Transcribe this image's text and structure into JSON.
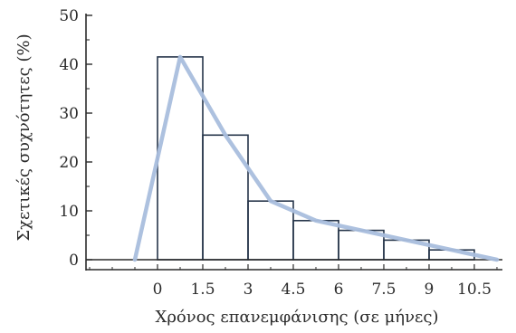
{
  "chart_data": {
    "type": "bar",
    "title": "",
    "xlabel": "Χρόνος επανεμφάνισης (σε μήνες)",
    "ylabel": "Σχετικές συχνότητες (%)",
    "xlim": [
      -1.5,
      11.5
    ],
    "ylim": [
      0,
      50
    ],
    "x_ticks": [
      "0",
      "1.5",
      "3",
      "4.5",
      "6",
      "7.5",
      "9",
      "10.5"
    ],
    "x_tick_values": [
      0,
      1.5,
      3,
      4.5,
      6,
      7.5,
      9,
      10.5
    ],
    "y_ticks": [
      "0",
      "10",
      "20",
      "30",
      "40",
      "50"
    ],
    "y_tick_values": [
      0,
      10,
      20,
      30,
      40,
      50
    ],
    "histogram": {
      "bin_edges": [
        0,
        1.5,
        3,
        4.5,
        6,
        7.5,
        9,
        10.5
      ],
      "values": [
        41.5,
        25.5,
        12,
        8,
        6,
        4,
        2
      ]
    },
    "frequency_polygon": {
      "x": [
        -0.75,
        0.75,
        2.25,
        3.75,
        5.25,
        6.75,
        8.25,
        9.75,
        11.25
      ],
      "y": [
        0,
        41.5,
        25.5,
        12,
        8,
        6,
        4,
        2,
        0
      ]
    },
    "grid": false,
    "colors": {
      "bar_edge": "#26354a",
      "polygon": "#a9bedd",
      "axis": "#2b2b2b"
    }
  }
}
